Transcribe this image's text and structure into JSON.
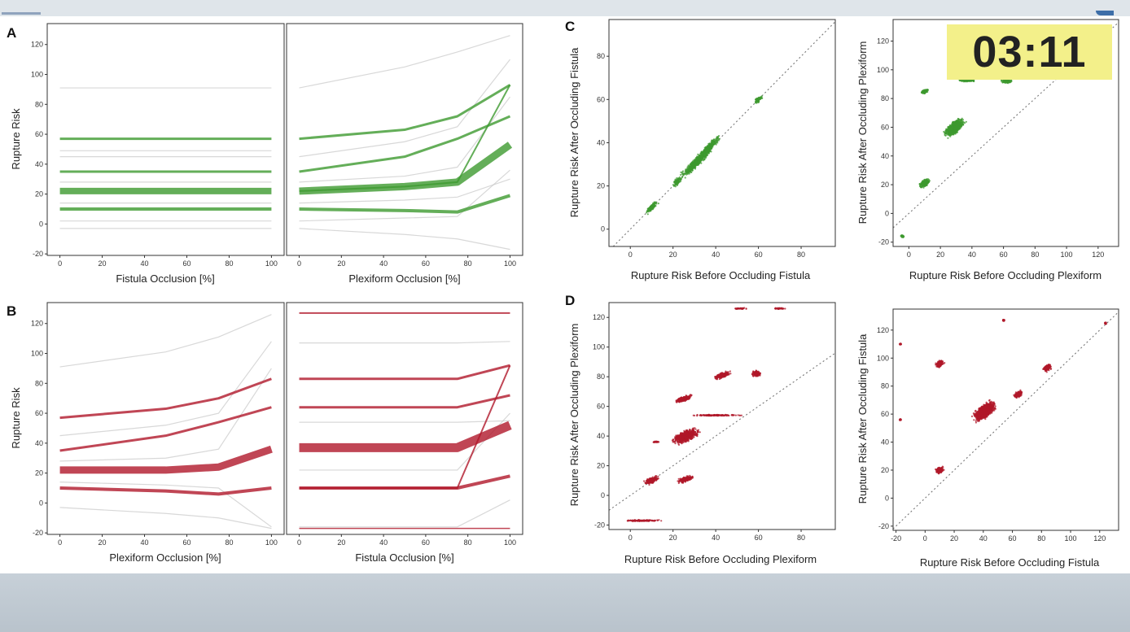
{
  "timer": "03:11",
  "colors": {
    "green": "#3d9a2f",
    "red": "#b0182a",
    "gray": "#c8c8c8"
  },
  "chart_data": [
    {
      "type": "line",
      "panel": "A",
      "panel_label": "A",
      "xlabel": "Fistula Occlusion [%]",
      "ylabel": "Rupture Risk",
      "xlim": [
        -6,
        106
      ],
      "ylim": [
        -21,
        134
      ],
      "xticks": [
        0,
        20,
        40,
        60,
        80,
        100
      ],
      "yticks": [
        -20,
        0,
        20,
        40,
        60,
        80,
        100,
        120
      ],
      "color": "green",
      "series": [
        {
          "x": [
            0,
            100
          ],
          "y": [
            57,
            57
          ],
          "w": 3
        },
        {
          "x": [
            0,
            100
          ],
          "y": [
            35,
            35
          ],
          "w": 3
        },
        {
          "x": [
            0,
            100
          ],
          "y": [
            22,
            22
          ],
          "w": 8
        },
        {
          "x": [
            0,
            100
          ],
          "y": [
            10,
            10
          ],
          "w": 4
        }
      ],
      "gray": [
        {
          "x": [
            0,
            100
          ],
          "y": [
            91,
            91
          ]
        },
        {
          "x": [
            0,
            100
          ],
          "y": [
            45,
            45
          ]
        },
        {
          "x": [
            0,
            100
          ],
          "y": [
            49,
            49
          ]
        },
        {
          "x": [
            0,
            100
          ],
          "y": [
            -3,
            -3
          ]
        },
        {
          "x": [
            0,
            100
          ],
          "y": [
            2,
            2
          ]
        },
        {
          "x": [
            0,
            100
          ],
          "y": [
            14,
            14
          ]
        },
        {
          "x": [
            0,
            100
          ],
          "y": [
            28,
            28
          ]
        }
      ]
    },
    {
      "type": "line",
      "panel": "A",
      "panel_label": "",
      "xlabel": "Plexiform Occlusion [%]",
      "ylabel": "",
      "xlim": [
        -6,
        106
      ],
      "ylim": [
        -21,
        134
      ],
      "xticks": [
        0,
        20,
        40,
        60,
        80,
        100
      ],
      "yticks": [],
      "color": "green",
      "series": [
        {
          "x": [
            0,
            50,
            75,
            100
          ],
          "y": [
            57,
            63,
            72,
            93
          ],
          "w": 3
        },
        {
          "x": [
            0,
            50,
            75,
            100
          ],
          "y": [
            35,
            45,
            57,
            72
          ],
          "w": 3
        },
        {
          "x": [
            0,
            50,
            75,
            100
          ],
          "y": [
            22,
            25,
            28,
            53
          ],
          "w": 9
        },
        {
          "x": [
            0,
            50,
            75,
            100
          ],
          "y": [
            22,
            25,
            28,
            93
          ],
          "w": 2
        },
        {
          "x": [
            0,
            50,
            75,
            100
          ],
          "y": [
            10,
            9,
            8,
            19
          ],
          "w": 4
        }
      ],
      "gray": [
        {
          "x": [
            0,
            50,
            75,
            100
          ],
          "y": [
            91,
            105,
            115,
            126
          ]
        },
        {
          "x": [
            0,
            50,
            75,
            100
          ],
          "y": [
            45,
            55,
            65,
            110
          ]
        },
        {
          "x": [
            0,
            50,
            75,
            100
          ],
          "y": [
            -3,
            -7,
            -10,
            -17
          ]
        },
        {
          "x": [
            0,
            50,
            75,
            100
          ],
          "y": [
            2,
            4,
            5,
            36
          ]
        },
        {
          "x": [
            0,
            50,
            75,
            100
          ],
          "y": [
            14,
            16,
            18,
            30
          ]
        },
        {
          "x": [
            0,
            50,
            75,
            100
          ],
          "y": [
            28,
            32,
            38,
            85
          ]
        }
      ]
    },
    {
      "type": "line",
      "panel": "B",
      "panel_label": "B",
      "xlabel": "Plexiform Occlusion [%]",
      "ylabel": "Rupture Risk",
      "xlim": [
        -6,
        106
      ],
      "ylim": [
        -21,
        134
      ],
      "xticks": [
        0,
        20,
        40,
        60,
        80,
        100
      ],
      "yticks": [
        -20,
        0,
        20,
        40,
        60,
        80,
        100,
        120
      ],
      "color": "red",
      "series": [
        {
          "x": [
            0,
            50,
            75,
            100
          ],
          "y": [
            57,
            63,
            70,
            83
          ],
          "w": 3
        },
        {
          "x": [
            0,
            50,
            75,
            100
          ],
          "y": [
            35,
            45,
            54,
            64
          ],
          "w": 3
        },
        {
          "x": [
            0,
            50,
            75,
            100
          ],
          "y": [
            22,
            22,
            24,
            36
          ],
          "w": 9
        },
        {
          "x": [
            0,
            50,
            75,
            100
          ],
          "y": [
            10,
            8,
            6,
            10
          ],
          "w": 4
        }
      ],
      "gray": [
        {
          "x": [
            0,
            50,
            75,
            100
          ],
          "y": [
            91,
            101,
            111,
            126
          ]
        },
        {
          "x": [
            0,
            50,
            75,
            100
          ],
          "y": [
            45,
            52,
            60,
            108
          ]
        },
        {
          "x": [
            0,
            50,
            75,
            100
          ],
          "y": [
            -3,
            -7,
            -10,
            -17
          ]
        },
        {
          "x": [
            0,
            50,
            75,
            100
          ],
          "y": [
            14,
            12,
            10,
            -16
          ]
        },
        {
          "x": [
            0,
            50,
            75,
            100
          ],
          "y": [
            28,
            30,
            36,
            90
          ]
        }
      ]
    },
    {
      "type": "line",
      "panel": "B",
      "panel_label": "",
      "xlabel": "Fistula Occlusion [%]",
      "ylabel": "",
      "xlim": [
        -6,
        106
      ],
      "ylim": [
        -21,
        134
      ],
      "xticks": [
        0,
        20,
        40,
        60,
        80,
        100
      ],
      "yticks": [],
      "color": "red",
      "series": [
        {
          "x": [
            0,
            75,
            100
          ],
          "y": [
            127,
            127,
            127
          ],
          "w": 2
        },
        {
          "x": [
            0,
            75,
            100
          ],
          "y": [
            83,
            83,
            92
          ],
          "w": 3
        },
        {
          "x": [
            0,
            75,
            100
          ],
          "y": [
            64,
            64,
            72
          ],
          "w": 3
        },
        {
          "x": [
            0,
            75,
            100
          ],
          "y": [
            37,
            37,
            52
          ],
          "w": 11
        },
        {
          "x": [
            0,
            75,
            100
          ],
          "y": [
            10,
            10,
            18
          ],
          "w": 4
        },
        {
          "x": [
            0,
            75,
            100
          ],
          "y": [
            10,
            10,
            92
          ],
          "w": 2
        },
        {
          "x": [
            0,
            75,
            100
          ],
          "y": [
            -17,
            -17,
            -17
          ],
          "w": 1.5
        }
      ],
      "gray": [
        {
          "x": [
            0,
            75,
            100
          ],
          "y": [
            107,
            107,
            108
          ]
        },
        {
          "x": [
            0,
            75,
            100
          ],
          "y": [
            54,
            54,
            55
          ]
        },
        {
          "x": [
            0,
            75,
            100
          ],
          "y": [
            22,
            22,
            60
          ]
        },
        {
          "x": [
            0,
            75,
            100
          ],
          "y": [
            -16,
            -16,
            2
          ]
        }
      ]
    },
    {
      "type": "scatter",
      "panel": "C",
      "panel_label": "C",
      "xlabel": "Rupture Risk Before Occluding Fistula",
      "ylabel": "Rupture Risk After Occluding Fistula",
      "xlim": [
        -10,
        96
      ],
      "ylim": [
        -8,
        97
      ],
      "xticks": [
        0,
        20,
        40,
        60,
        80
      ],
      "yticks": [
        0,
        20,
        40,
        60,
        80
      ],
      "color": "green",
      "clusters": [
        {
          "cx": 31,
          "cy": 31,
          "rx": 12,
          "ry": 2.2,
          "rot": -45
        },
        {
          "cx": 37,
          "cy": 38,
          "rx": 8,
          "ry": 1.6,
          "rot": -45
        },
        {
          "cx": 10,
          "cy": 10,
          "rx": 4,
          "ry": 1.4,
          "rot": -45
        },
        {
          "cx": 60,
          "cy": 60,
          "rx": 3,
          "ry": 1.2,
          "rot": -45
        },
        {
          "cx": 22,
          "cy": 22,
          "rx": 3,
          "ry": 1.6,
          "rot": -45
        }
      ]
    },
    {
      "type": "scatter",
      "panel": "C",
      "panel_label": "",
      "xlabel": "Rupture Risk Before Occluding Plexiform",
      "ylabel": "Rupture Risk After Occluding Plexiform",
      "xlim": [
        -10,
        133
      ],
      "ylim": [
        -23,
        135
      ],
      "xticks": [
        0,
        20,
        40,
        60,
        80,
        100,
        120
      ],
      "yticks": [
        -20,
        0,
        20,
        40,
        60,
        80,
        100,
        120
      ],
      "color": "green",
      "clusters": [
        {
          "cx": 29,
          "cy": 60,
          "rx": 9,
          "ry": 4,
          "rot": -45
        },
        {
          "cx": 10,
          "cy": 21,
          "rx": 4.5,
          "ry": 2.5,
          "rot": -45
        },
        {
          "cx": 10,
          "cy": 85,
          "rx": 3,
          "ry": 1.6,
          "rot": -30
        },
        {
          "cx": 37,
          "cy": 93,
          "rx": 6,
          "ry": 1.6,
          "rot": 0
        },
        {
          "cx": 62,
          "cy": 92,
          "rx": 4,
          "ry": 1.6,
          "rot": 0
        },
        {
          "cx": -4,
          "cy": -16,
          "rx": 1.5,
          "ry": 1,
          "rot": 0
        }
      ]
    },
    {
      "type": "scatter",
      "panel": "D",
      "panel_label": "D",
      "xlabel": "Rupture Risk Before Occluding Plexiform",
      "ylabel": "Rupture Risk After Occluding Plexiform",
      "xlim": [
        -10,
        96
      ],
      "ylim": [
        -23,
        130
      ],
      "xticks": [
        0,
        20,
        40,
        60,
        80
      ],
      "yticks": [
        -20,
        0,
        20,
        40,
        60,
        80,
        100,
        120
      ],
      "color": "red",
      "clusters": [
        {
          "cx": 26,
          "cy": 40,
          "rx": 8,
          "ry": 4,
          "rot": -35
        },
        {
          "cx": 10,
          "cy": 10,
          "rx": 4.5,
          "ry": 2.2,
          "rot": -30
        },
        {
          "cx": 26,
          "cy": 11,
          "rx": 5,
          "ry": 2,
          "rot": -30
        },
        {
          "cx": 25,
          "cy": 65,
          "rx": 5,
          "ry": 2,
          "rot": -25
        },
        {
          "cx": 43,
          "cy": 81,
          "rx": 5,
          "ry": 2,
          "rot": -25
        },
        {
          "cx": 59,
          "cy": 82,
          "rx": 2.5,
          "ry": 2.5,
          "rot": 0
        },
        {
          "cx": 6,
          "cy": -17,
          "rx": 10,
          "ry": 0.6,
          "rot": 0
        },
        {
          "cx": 12,
          "cy": 36,
          "rx": 2,
          "ry": 0.6,
          "rot": 0
        },
        {
          "cx": 40,
          "cy": 54,
          "rx": 14,
          "ry": 0.5,
          "rot": 0
        },
        {
          "cx": 52,
          "cy": 126,
          "rx": 4,
          "ry": 0.5,
          "rot": 0
        },
        {
          "cx": 70,
          "cy": 126,
          "rx": 3,
          "ry": 0.5,
          "rot": 0
        }
      ]
    },
    {
      "type": "scatter",
      "panel": "D",
      "panel_label": "",
      "xlabel": "Rupture Risk Before Occluding Fistula",
      "ylabel": "Rupture Risk After Occluding Fistula",
      "xlim": [
        -22,
        133
      ],
      "ylim": [
        -23,
        135
      ],
      "xticks": [
        -20,
        0,
        20,
        40,
        60,
        80,
        100,
        120
      ],
      "yticks": [
        -20,
        0,
        20,
        40,
        60,
        80,
        100,
        120
      ],
      "color": "red",
      "clusters": [
        {
          "cx": 41,
          "cy": 62,
          "rx": 10,
          "ry": 5,
          "rot": -40
        },
        {
          "cx": 10,
          "cy": 20,
          "rx": 3.5,
          "ry": 2.5,
          "rot": -35
        },
        {
          "cx": 10,
          "cy": 96,
          "rx": 3.5,
          "ry": 2.5,
          "rot": -35
        },
        {
          "cx": 64,
          "cy": 74,
          "rx": 3.5,
          "ry": 2.5,
          "rot": -35
        },
        {
          "cx": 84,
          "cy": 93,
          "rx": 3.5,
          "ry": 2.5,
          "rot": -35
        },
        {
          "cx": -17,
          "cy": 56,
          "rx": 0.6,
          "ry": 0.6,
          "rot": 0
        },
        {
          "cx": -17,
          "cy": 110,
          "rx": 0.6,
          "ry": 0.6,
          "rot": 0
        },
        {
          "cx": 54,
          "cy": 127,
          "rx": 0.8,
          "ry": 0.8,
          "rot": 0
        },
        {
          "cx": 124,
          "cy": 125,
          "rx": 0.8,
          "ry": 0.8,
          "rot": 0
        }
      ]
    }
  ]
}
